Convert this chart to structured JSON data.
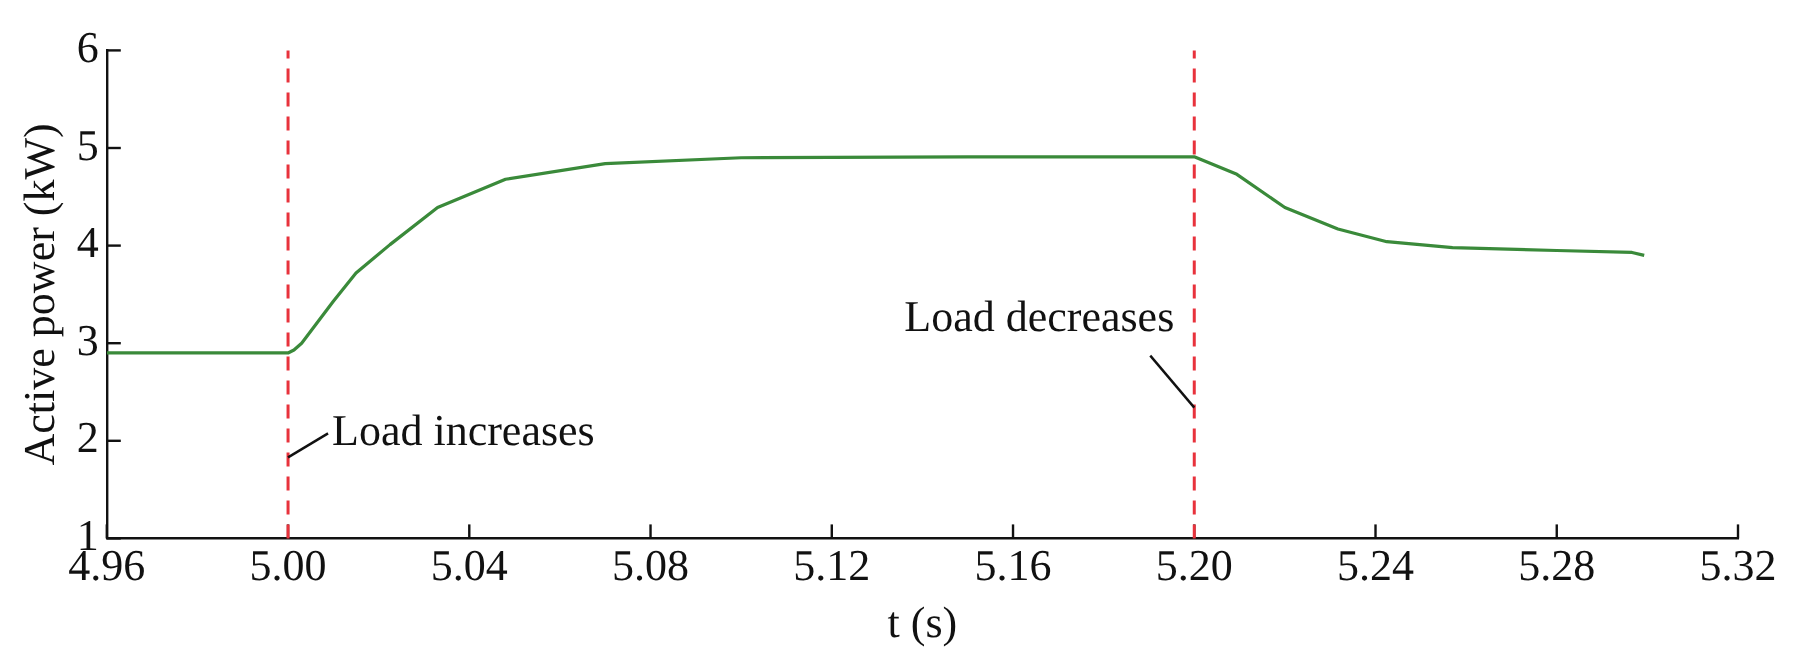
{
  "chart_data": {
    "type": "line",
    "xlabel": "t (s)",
    "ylabel": "Active power (kW)",
    "x": [
      4.96,
      5.0,
      5.0013,
      5.003,
      5.01,
      5.015,
      5.0225,
      5.033,
      5.048,
      5.07,
      5.1,
      5.15,
      5.2,
      5.2094,
      5.22,
      5.2317,
      5.2425,
      5.257,
      5.28,
      5.2966,
      5.2993
    ],
    "series": [
      {
        "color": "#3a8a3a",
        "values": [
          2.9,
          2.9,
          2.93,
          3.0,
          3.43,
          3.72,
          4.01,
          4.39,
          4.68,
          4.84,
          4.9,
          4.91,
          4.91,
          4.73,
          4.39,
          4.17,
          4.04,
          3.98,
          3.95,
          3.93,
          3.9
        ]
      }
    ],
    "xlim": [
      4.96,
      5.32
    ],
    "xticks": [
      {
        "value": 4.96,
        "label": "4.96"
      },
      {
        "value": 5.0,
        "label": "5.00"
      },
      {
        "value": 5.04,
        "label": "5.04"
      },
      {
        "value": 5.08,
        "label": "5.08"
      },
      {
        "value": 5.12,
        "label": "5.12"
      },
      {
        "value": 5.16,
        "label": "5.16"
      },
      {
        "value": 5.2,
        "label": "5.20"
      },
      {
        "value": 5.24,
        "label": "5.24"
      },
      {
        "value": 5.28,
        "label": "5.28"
      },
      {
        "value": 5.32,
        "label": "5.32"
      }
    ],
    "ylim": [
      1,
      6
    ],
    "yticks": [
      1,
      2,
      3,
      4,
      5,
      6
    ],
    "ref_lines": [
      {
        "axis": "x",
        "value": 5.0,
        "color": "#e8323c",
        "line_style": "dashed"
      },
      {
        "axis": "x",
        "value": 5.2,
        "color": "#e8323c",
        "line_style": "dashed"
      }
    ],
    "annotations": [
      {
        "text": "Load increases",
        "x": 5.0,
        "y": 1.83
      },
      {
        "text": "Load decreases",
        "x": 5.2,
        "y": 2.34
      }
    ],
    "grid": false,
    "legend": false,
    "marker": "none",
    "line_style": "solid"
  }
}
